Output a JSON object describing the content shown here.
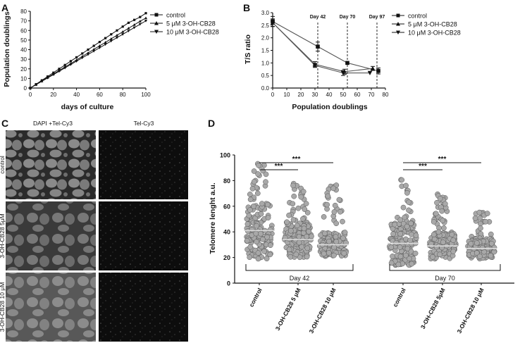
{
  "panels": {
    "A": {
      "letter": "A",
      "chart_data": {
        "type": "line",
        "xlabel": "days of culture",
        "ylabel": "Population doublings",
        "xlim": [
          0,
          100
        ],
        "ylim": [
          0,
          80
        ],
        "xticks": [
          "0",
          "20",
          "40",
          "60",
          "80",
          "100"
        ],
        "yticks": [
          "0",
          "10",
          "20",
          "30",
          "40",
          "50",
          "60",
          "70",
          "80"
        ],
        "legend_position": "right",
        "series": [
          {
            "name": "control",
            "marker": "square",
            "x": [
              0,
              5,
              10,
              15,
              20,
              25,
              30,
              35,
              40,
              45,
              50,
              55,
              60,
              65,
              70,
              75,
              80,
              85,
              90,
              95,
              100
            ],
            "y": [
              0,
              4,
              8,
              12,
              16,
              20,
              24,
              28,
              32,
              36,
              40,
              44,
              48,
              52,
              56,
              60,
              64,
              68,
              71,
              74,
              78
            ]
          },
          {
            "name": "5 μM 3-OH-CB28",
            "marker": "triangle-up",
            "x": [
              0,
              5,
              10,
              15,
              20,
              25,
              30,
              35,
              40,
              45,
              50,
              55,
              60,
              65,
              70,
              75,
              80,
              85,
              90,
              95,
              100
            ],
            "y": [
              0,
              3.6,
              7.3,
              11,
              14.6,
              18.3,
              22,
              25.5,
              29.2,
              33,
              36.6,
              40.3,
              44,
              47.6,
              51.3,
              55,
              58.6,
              62.3,
              65.9,
              69.6,
              73
            ]
          },
          {
            "name": "10 μM 3-OH-CB28",
            "marker": "triangle-down",
            "x": [
              0,
              5,
              10,
              15,
              20,
              25,
              30,
              35,
              40,
              45,
              50,
              55,
              60,
              65,
              70,
              75,
              80,
              85,
              90,
              95,
              100
            ],
            "y": [
              0,
              3.5,
              7,
              10.5,
              14,
              17.5,
              21,
              24.5,
              28,
              31.5,
              35,
              38.5,
              42,
              45.5,
              49,
              52.5,
              56,
              59.5,
              63,
              66.5,
              70
            ]
          }
        ]
      }
    },
    "B": {
      "letter": "B",
      "chart_data": {
        "type": "line",
        "xlabel": "Population doublings",
        "ylabel": "T/S ratio",
        "xlim": [
          0,
          80
        ],
        "ylim": [
          0,
          3.0
        ],
        "xticks": [
          "0",
          "10",
          "20",
          "30",
          "40",
          "50",
          "60",
          "70",
          "80"
        ],
        "yticks": [
          "0.0",
          "0.5",
          "1.0",
          "1.5",
          "2.0",
          "2.5",
          "3.0"
        ],
        "legend_position": "right",
        "annotations": [
          {
            "x": 32,
            "text": "Day 42"
          },
          {
            "x": 53,
            "text": "Day 70"
          },
          {
            "x": 74,
            "text": "Day 97"
          }
        ],
        "series": [
          {
            "name": "control",
            "marker": "square",
            "x": [
              0,
              32,
              53,
              75
            ],
            "y": [
              2.65,
              1.65,
              1.0,
              0.68
            ],
            "err": [
              0.2,
              0.18,
              0.0,
              0.12
            ]
          },
          {
            "name": "5 μM 3-OH-CB28",
            "marker": "triangle-up",
            "x": [
              0,
              30,
              51,
              71
            ],
            "y": [
              2.6,
              0.95,
              0.65,
              0.78
            ],
            "err": [
              0.15,
              0.1,
              0.1,
              0.08
            ]
          },
          {
            "name": "10 μM 3-OH-CB28",
            "marker": "triangle-down",
            "x": [
              0,
              30,
              50,
              69
            ],
            "y": [
              2.6,
              0.9,
              0.6,
              0.6
            ],
            "err": [
              0.15,
              0.08,
              0.1,
              0.0
            ]
          }
        ]
      }
    },
    "C": {
      "letter": "C",
      "col_headers": [
        "DAPI  +Tel-Cy3",
        "Tel-Cy3"
      ],
      "row_labels": [
        "control",
        "3-OH-CB28 5μM",
        "3-OH-CB28 10 μM"
      ]
    },
    "D": {
      "letter": "D",
      "chart_data": {
        "type": "scatter",
        "ylabel": "Telomere lenght a.u.",
        "ylim": [
          0,
          100
        ],
        "yticks": [
          "0",
          "20",
          "40",
          "60",
          "80",
          "100"
        ],
        "categories": [
          "control",
          "3-OH-CB28 5 μM",
          "3-OH-CB28 10 μM",
          "control",
          "3-OH-CB28 5μM",
          "3-OH-CB28 10 μM"
        ],
        "groups": [
          "Day 42",
          "Day 70"
        ],
        "medians": [
          41,
          34,
          30,
          31,
          29,
          27
        ],
        "min": [
          19,
          20,
          21,
          14,
          19,
          19
        ],
        "max": [
          96,
          78,
          77,
          82,
          70,
          58
        ],
        "significance": [
          {
            "from": 0,
            "to": 1,
            "label": "***"
          },
          {
            "from": 0,
            "to": 2,
            "label": "***"
          },
          {
            "from": 3,
            "to": 4,
            "label": "***"
          },
          {
            "from": 3,
            "to": 5,
            "label": "***"
          }
        ]
      }
    }
  }
}
